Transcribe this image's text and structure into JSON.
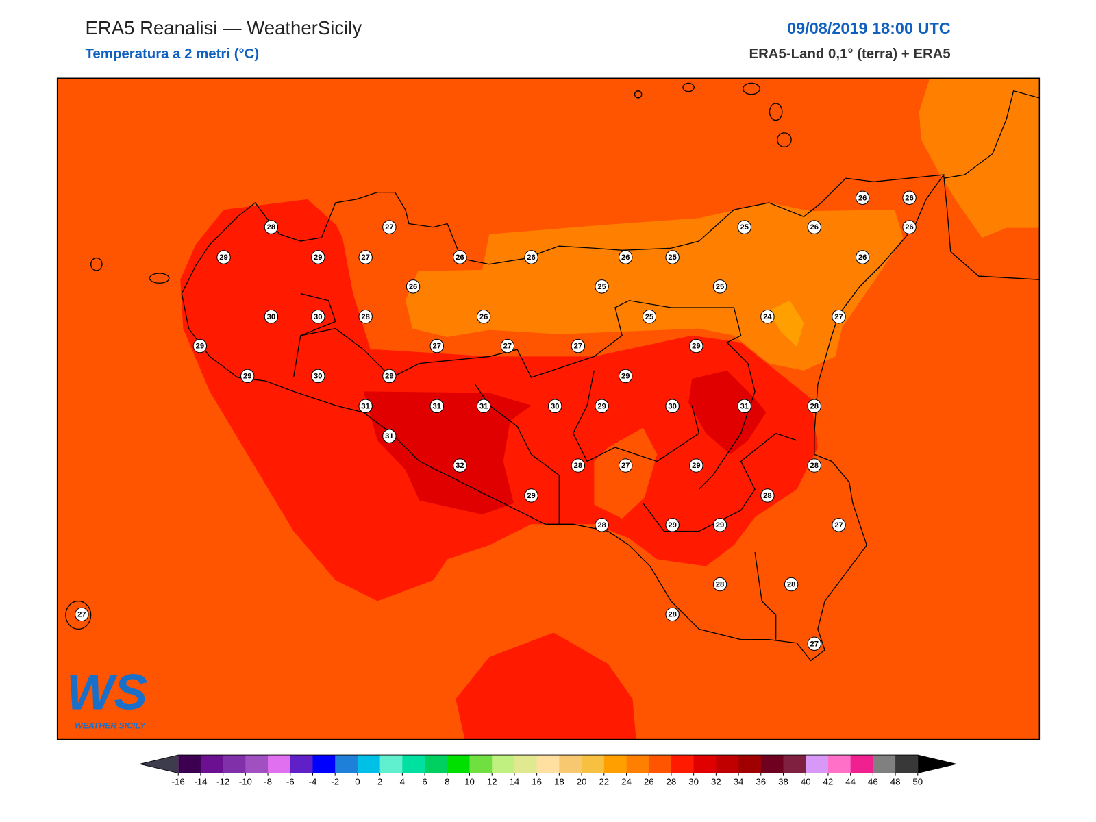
{
  "header": {
    "title": "ERA5 Reanalisi — WeatherSicily",
    "subtitle": "Temperatura a 2 metri (°C)",
    "datetime": "09/08/2019 18:00 UTC",
    "source": "ERA5-Land 0,1° (terra) + ERA5"
  },
  "logo": {
    "text": "WS",
    "caption": "WEATHER SICILY"
  },
  "stations": [
    28,
    27,
    29,
    29,
    27,
    26,
    26,
    26,
    25,
    25,
    26,
    26,
    26,
    26,
    26,
    26,
    25,
    25,
    30,
    30,
    28,
    26,
    25,
    24,
    27,
    29,
    27,
    27,
    27,
    29,
    29,
    30,
    29,
    29,
    31,
    31,
    31,
    30,
    29,
    30,
    31,
    28,
    31,
    32,
    28,
    27,
    29,
    28,
    29,
    28,
    28,
    29,
    29,
    27,
    28,
    28,
    28,
    27,
    27
  ],
  "colorbar": {
    "ticks": [
      -16,
      -14,
      -12,
      -10,
      -8,
      -6,
      -4,
      -2,
      0,
      2,
      4,
      6,
      8,
      10,
      12,
      14,
      16,
      18,
      20,
      22,
      24,
      26,
      28,
      30,
      32,
      34,
      36,
      38,
      40,
      42,
      44,
      46,
      48,
      50
    ],
    "colors": [
      "#3d0050",
      "#6a1090",
      "#8030a8",
      "#a050c0",
      "#e070f0",
      "#6020c8",
      "#0000ff",
      "#1e80d8",
      "#00c0e8",
      "#60f0d0",
      "#00e0a0",
      "#00d060",
      "#00e000",
      "#70e040",
      "#c0f080",
      "#e0e890",
      "#ffe0a0",
      "#f8c870",
      "#f8c040",
      "#ffa000",
      "#ff8000",
      "#ff5500",
      "#ff1a00",
      "#e00000",
      "#c00000",
      "#a00000",
      "#700020",
      "#802040",
      "#d898f8",
      "#ff70c8",
      "#f02090",
      "#808080",
      "#383838"
    ],
    "extend_colors": [
      "#3c3c4c",
      "#000000"
    ]
  }
}
